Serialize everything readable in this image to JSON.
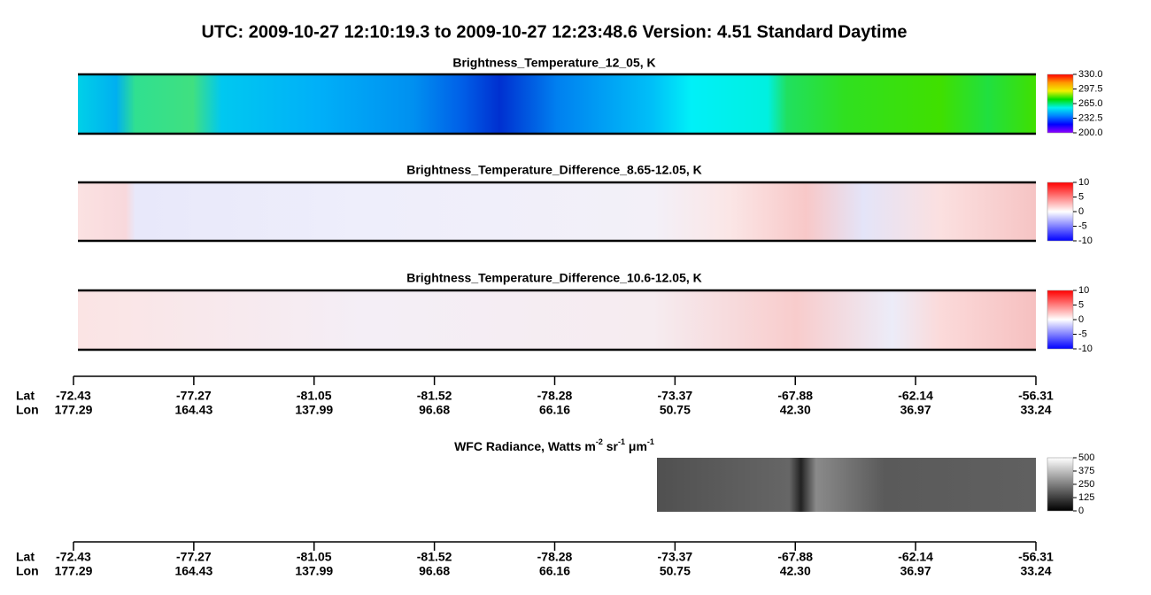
{
  "chart_data": [
    {
      "type": "image-strip",
      "title": "UTC:  2009-10-27   12:10:19.3  to  2009-10-27   12:23:48.6    Version: 4.51  Standard Daytime"
    },
    {
      "type": "image-strip",
      "title": "Brightness_Temperature_12_05, K",
      "clim": [
        200,
        330
      ],
      "colormap": [
        "#ff0000",
        "#ff9900",
        "#f0f000",
        "#00e000",
        "#00f0f0",
        "#0080ff",
        "#0000ff",
        "#9000ff"
      ],
      "cticks": [
        {
          "value": 330,
          "label": "330.0"
        },
        297.5,
        {
          "value": 265,
          "label": "265.0"
        },
        232.5,
        {
          "value": 200,
          "label": "200.0"
        }
      ]
    },
    {
      "type": "image-strip",
      "title": "Brightness_Temperature_Difference_8.65-12.05, K",
      "clim": [
        -10,
        10
      ],
      "colormap": [
        "#ff0000",
        "#ffffff",
        "#0000ff"
      ],
      "cticks": [
        10,
        5,
        0,
        -5,
        -10
      ]
    },
    {
      "type": "image-strip",
      "title": "Brightness_Temperature_Difference_10.6-12.05, K",
      "clim": [
        -10,
        10
      ],
      "colormap": [
        "#ff0000",
        "#ffffff",
        "#0000ff"
      ],
      "cticks": [
        10,
        5,
        0,
        -5,
        -10
      ]
    },
    {
      "type": "image-strip",
      "title_parts": [
        "WFC Radiance, Watts m",
        "-2",
        " sr",
        "-1",
        " μm",
        "-1"
      ],
      "clim": [
        0,
        500
      ],
      "colormap": [
        "#ffffff",
        "#000000"
      ],
      "cticks": [
        500,
        375,
        250,
        125,
        0
      ]
    }
  ],
  "axis": {
    "lat_label": "Lat",
    "lon_label": "Lon",
    "lat": [
      "-72.43",
      "-77.27",
      "-81.05",
      "-81.52",
      "-78.28",
      "-73.37",
      "-67.88",
      "-62.14",
      "-56.31"
    ],
    "lon": [
      "177.29",
      "164.43",
      "137.99",
      "96.68",
      "66.16",
      "50.75",
      "42.30",
      "36.97",
      "33.24"
    ]
  }
}
